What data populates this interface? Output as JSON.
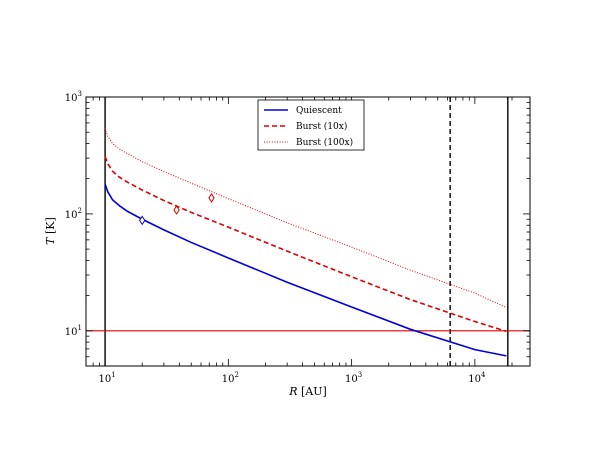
{
  "chart_data": {
    "type": "line",
    "title": "",
    "xlabel_var": "R",
    "xlabel_unit": "[AU]",
    "ylabel_var": "T",
    "ylabel_unit": "[K]",
    "xscale": "log",
    "yscale": "log",
    "xlim": [
      7,
      28000
    ],
    "ylim": [
      5,
      1000
    ],
    "grid": false,
    "legend_position": "top-center",
    "x_ticks": [
      {
        "base": "10",
        "exp": "1",
        "value": 10
      },
      {
        "base": "10",
        "exp": "2",
        "value": 100
      },
      {
        "base": "10",
        "exp": "3",
        "value": 1000
      },
      {
        "base": "10",
        "exp": "4",
        "value": 10000
      }
    ],
    "y_ticks": [
      {
        "base": "10",
        "exp": "1",
        "value": 10
      },
      {
        "base": "10",
        "exp": "2",
        "value": 100
      },
      {
        "base": "10",
        "exp": "3",
        "value": 1000
      }
    ],
    "series": [
      {
        "name": "Quiescent",
        "color": "#0000dd",
        "style": "solid",
        "x": [
          10,
          10.5,
          11.5,
          13,
          15,
          20,
          30,
          50,
          100,
          300,
          1000,
          3000,
          10000,
          18000
        ],
        "y": [
          180,
          155,
          132,
          118,
          106,
          90,
          73,
          57,
          42,
          26,
          16,
          10.3,
          6.9,
          6.1
        ],
        "marker": {
          "x": 20,
          "y": 88
        }
      },
      {
        "name": "Burst (10x)",
        "color": "#dd0000",
        "style": "dashed",
        "x": [
          10,
          10.5,
          11.5,
          13,
          15,
          20,
          30,
          50,
          100,
          300,
          1000,
          3000,
          10000,
          18000
        ],
        "y": [
          310,
          270,
          232,
          207,
          188,
          160,
          130,
          103,
          77,
          48,
          29,
          18.5,
          12,
          9.9
        ],
        "marker": {
          "x": 38,
          "y": 108
        }
      },
      {
        "name": "Burst (100x)",
        "color": "#dd0000",
        "style": "dotted",
        "x": [
          10,
          10.5,
          11.5,
          13,
          15,
          20,
          30,
          50,
          100,
          300,
          1000,
          3000,
          10000,
          18000
        ],
        "y": [
          540,
          460,
          400,
          360,
          330,
          280,
          230,
          183,
          135,
          84,
          52,
          33,
          21,
          15.8
        ],
        "marker": {
          "x": 73,
          "y": 137
        }
      }
    ],
    "hlines": [
      {
        "y": 10,
        "color": "#dd0000",
        "style": "solid"
      }
    ],
    "vlines": [
      {
        "x": 10,
        "color": "#000000",
        "style": "solid"
      },
      {
        "x": 6300,
        "color": "#000000",
        "style": "dashed"
      },
      {
        "x": 18500,
        "color": "#000000",
        "style": "solid"
      }
    ]
  }
}
